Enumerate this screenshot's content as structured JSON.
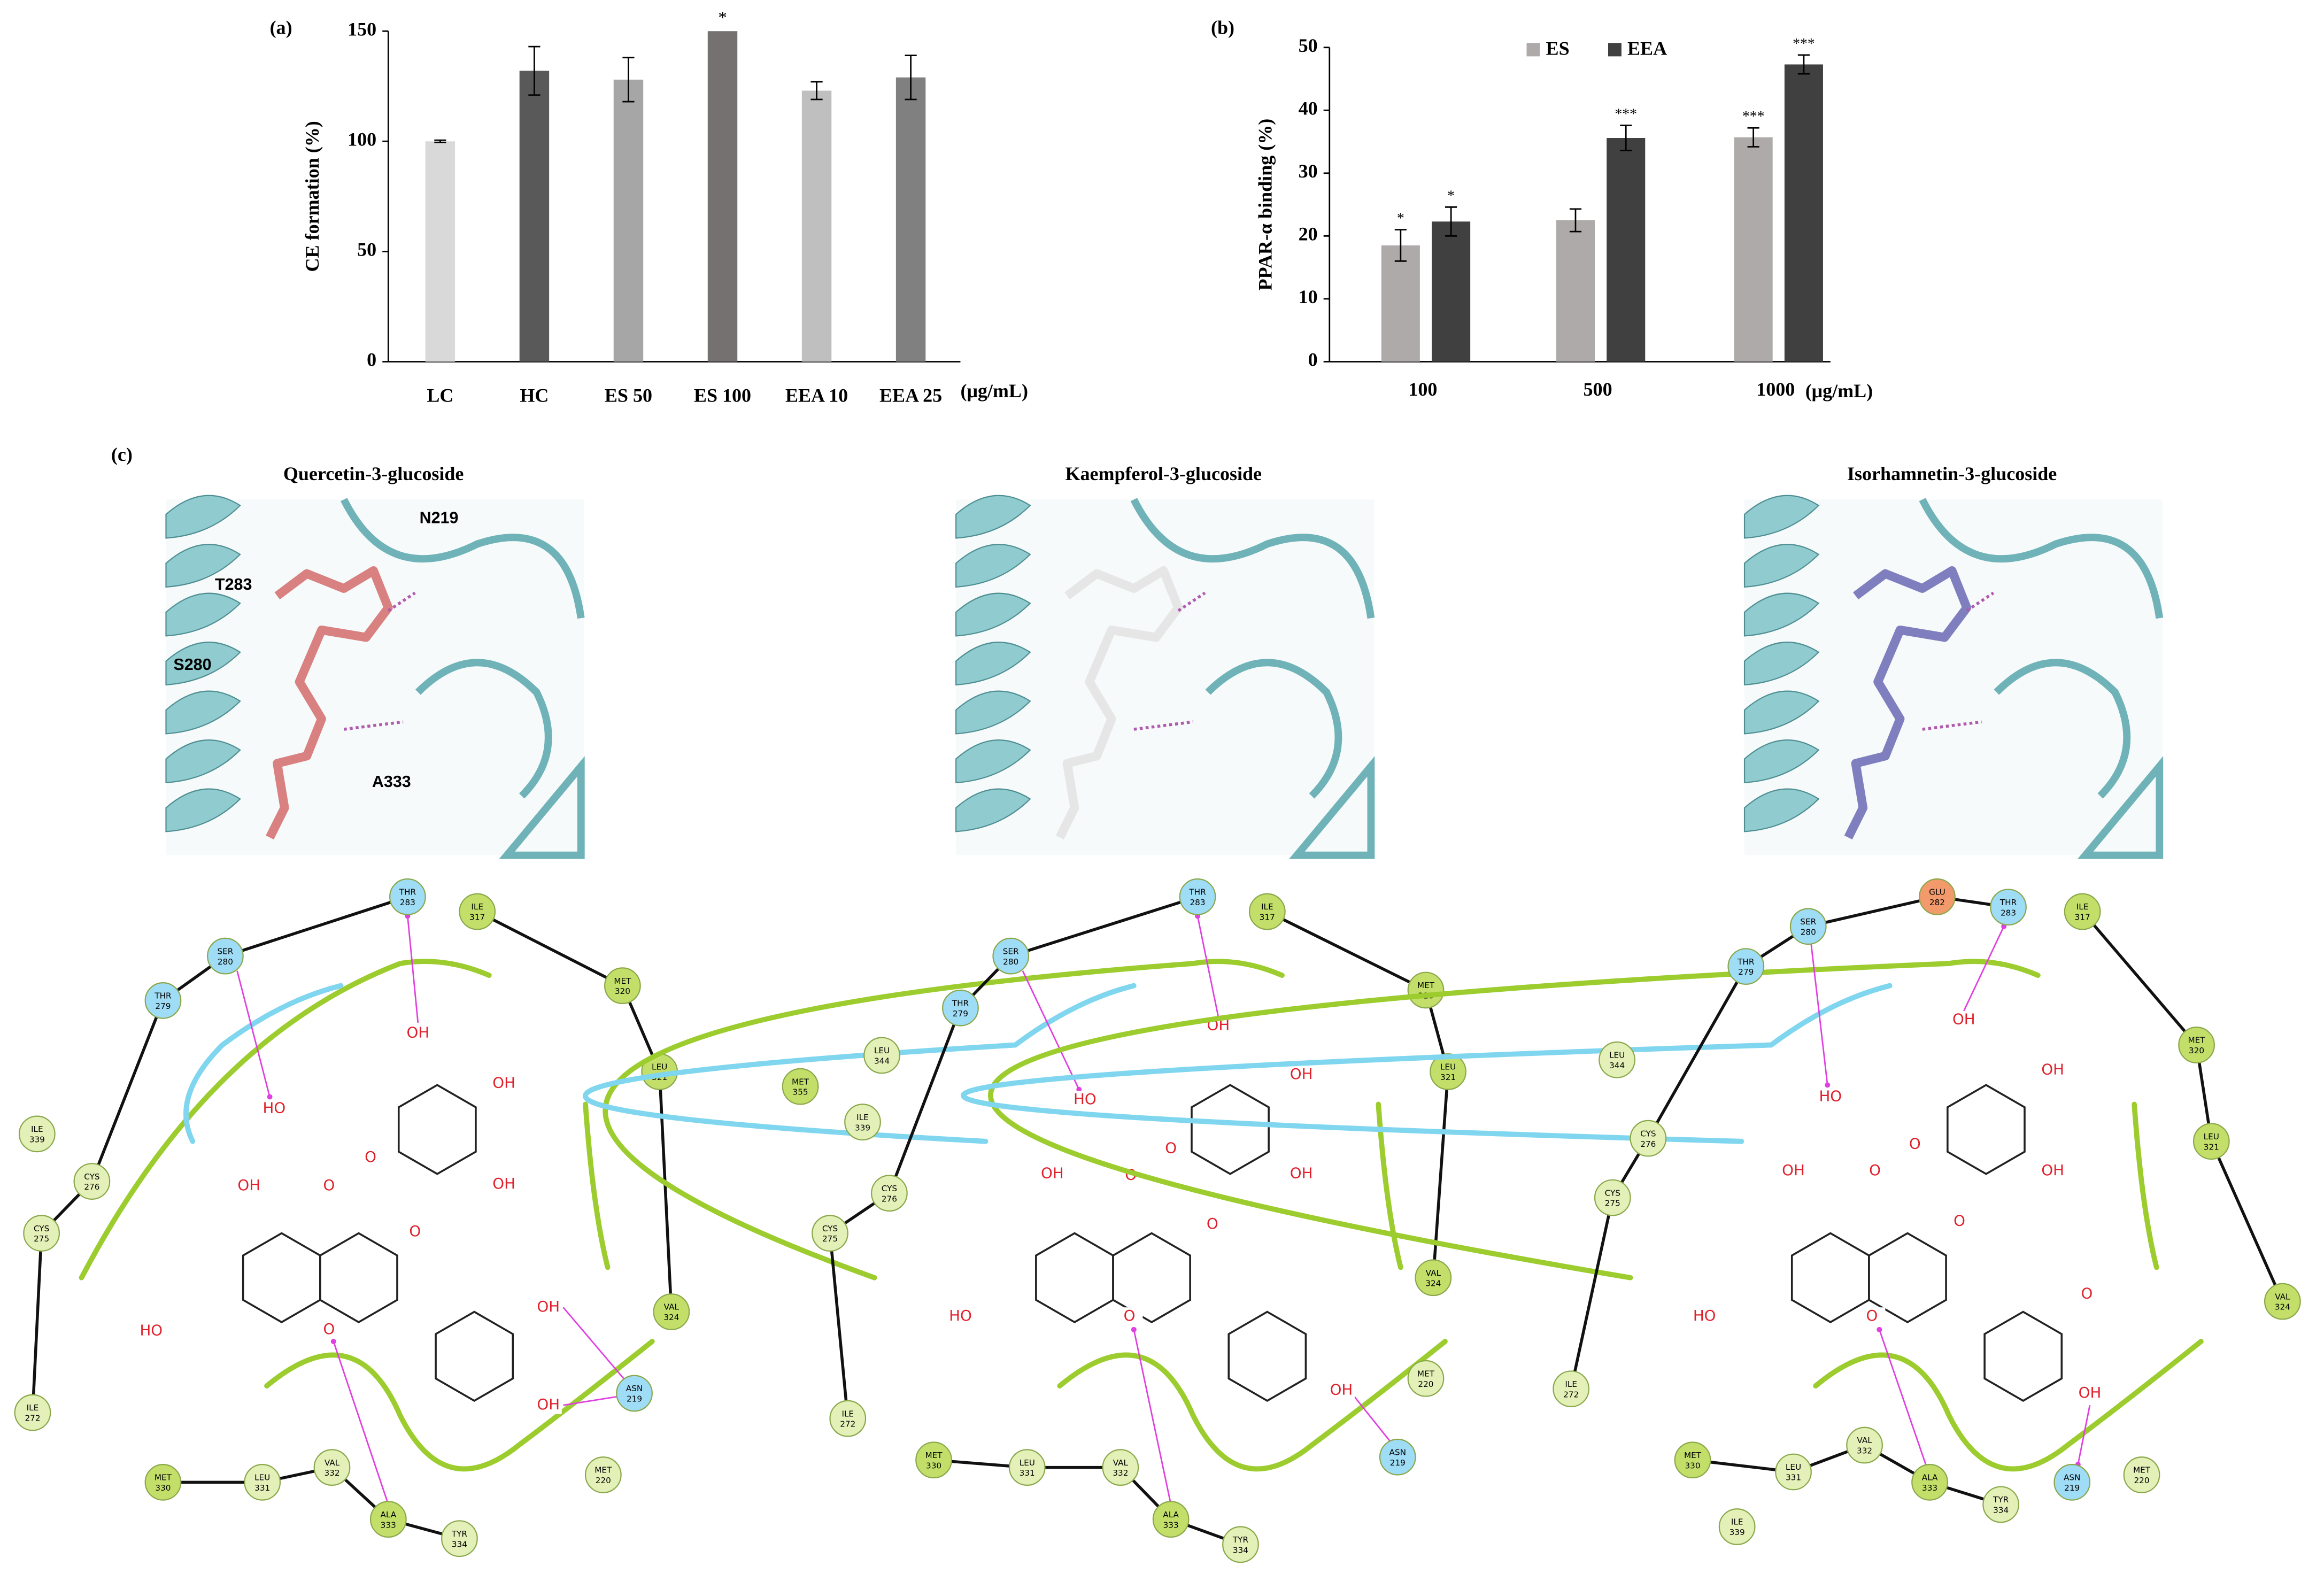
{
  "chart_data": [
    {
      "type": "bar",
      "panel_label": "(a)",
      "ylabel": "CE formation (%)",
      "x_unit": "(μg/mL)",
      "categories": [
        "LC",
        "HC",
        "ES 50",
        "ES 100",
        "EEA 10",
        "EEA 25"
      ],
      "values": [
        100,
        132,
        128,
        150,
        123,
        129
      ],
      "errors": [
        0.5,
        11,
        10,
        null,
        4,
        10
      ],
      "significance": [
        null,
        null,
        null,
        "*",
        null,
        null
      ],
      "colors": [
        "#d9d9d9",
        "#595959",
        "#a6a6a6",
        "#767171",
        "#bfbfbf",
        "#808080"
      ],
      "ylim": [
        0,
        150
      ],
      "yticks": [
        0,
        50,
        100,
        150
      ]
    },
    {
      "type": "grouped_bar",
      "panel_label": "(b)",
      "ylabel": "PPAR-α binding (%)",
      "x_unit": "(μg/mL)",
      "categories": [
        "100",
        "500",
        "1000"
      ],
      "series": [
        {
          "name": "ES",
          "color": "#aeaaaa",
          "values": [
            18.5,
            22.5,
            35.7
          ],
          "errors": [
            2.5,
            1.8,
            1.5
          ],
          "significance": [
            "*",
            null,
            "***"
          ]
        },
        {
          "name": "EEA",
          "color": "#404040",
          "values": [
            22.3,
            35.6,
            47.3
          ],
          "errors": [
            2.3,
            2,
            1.5
          ],
          "significance": [
            "*",
            "***",
            "***"
          ]
        }
      ],
      "ylim": [
        0,
        50
      ],
      "yticks": [
        0,
        10,
        20,
        30,
        40,
        50
      ],
      "legend": "top"
    }
  ],
  "panel_c": {
    "label": "(c)",
    "complexes": [
      {
        "title": "Quercetin-3-glucoside",
        "ligand_color": "#d98080",
        "structure_labels": [
          "N219",
          "T283",
          "S280",
          "A333"
        ],
        "residues": [
          {
            "name": "THR",
            "number": "283",
            "color": "#9fdcf5"
          },
          {
            "name": "ILE",
            "number": "317",
            "color": "#c3df6a"
          },
          {
            "name": "SER",
            "number": "280",
            "color": "#9fdcf5"
          },
          {
            "name": "THR",
            "number": "279",
            "color": "#9fdcf5"
          },
          {
            "name": "MET",
            "number": "320",
            "color": "#c3df6a"
          },
          {
            "name": "LEU",
            "number": "321",
            "color": "#c3df6a"
          },
          {
            "name": "ILE",
            "number": "339",
            "color": "#e3f0b8"
          },
          {
            "name": "CYS",
            "number": "276",
            "color": "#e3f0b8"
          },
          {
            "name": "CYS",
            "number": "275",
            "color": "#e3f0b8"
          },
          {
            "name": "VAL",
            "number": "324",
            "color": "#c3df6a"
          },
          {
            "name": "ASN",
            "number": "219",
            "color": "#9fdcf5"
          },
          {
            "name": "MET",
            "number": "220",
            "color": "#e3f0b8"
          },
          {
            "name": "ILE",
            "number": "272",
            "color": "#e3f0b8"
          },
          {
            "name": "MET",
            "number": "330",
            "color": "#c3df6a"
          },
          {
            "name": "LEU",
            "number": "331",
            "color": "#e3f0b8"
          },
          {
            "name": "VAL",
            "number": "332",
            "color": "#e3f0b8"
          },
          {
            "name": "ALA",
            "number": "333",
            "color": "#c3df6a"
          },
          {
            "name": "TYR",
            "number": "334",
            "color": "#e3f0b8"
          }
        ],
        "atoms": [
          "HO",
          "OH",
          "OH",
          "OH",
          "O",
          "O",
          "OH",
          "O",
          "HO",
          "O",
          "OH",
          "OH"
        ]
      },
      {
        "title": "Kaempferol-3-glucoside",
        "ligand_color": "#e6e6e6",
        "structure_labels": [],
        "residues": [
          {
            "name": "THR",
            "number": "283",
            "color": "#9fdcf5"
          },
          {
            "name": "ILE",
            "number": "317",
            "color": "#c3df6a"
          },
          {
            "name": "SER",
            "number": "280",
            "color": "#9fdcf5"
          },
          {
            "name": "THR",
            "number": "279",
            "color": "#9fdcf5"
          },
          {
            "name": "MET",
            "number": "320",
            "color": "#c3df6a"
          },
          {
            "name": "LEU",
            "number": "321",
            "color": "#c3df6a"
          },
          {
            "name": "LEU",
            "number": "344",
            "color": "#e3f0b8"
          },
          {
            "name": "MET",
            "number": "355",
            "color": "#c3df6a"
          },
          {
            "name": "ILE",
            "number": "339",
            "color": "#e3f0b8"
          },
          {
            "name": "CYS",
            "number": "276",
            "color": "#e3f0b8"
          },
          {
            "name": "CYS",
            "number": "275",
            "color": "#e3f0b8"
          },
          {
            "name": "VAL",
            "number": "324",
            "color": "#c3df6a"
          },
          {
            "name": "MET",
            "number": "220",
            "color": "#e3f0b8"
          },
          {
            "name": "ASN",
            "number": "219",
            "color": "#9fdcf5"
          },
          {
            "name": "ILE",
            "number": "272",
            "color": "#e3f0b8"
          },
          {
            "name": "MET",
            "number": "330",
            "color": "#c3df6a"
          },
          {
            "name": "LEU",
            "number": "331",
            "color": "#e3f0b8"
          },
          {
            "name": "VAL",
            "number": "332",
            "color": "#e3f0b8"
          },
          {
            "name": "ALA",
            "number": "333",
            "color": "#c3df6a"
          },
          {
            "name": "TYR",
            "number": "334",
            "color": "#e3f0b8"
          }
        ],
        "atoms": [
          "HO",
          "OH",
          "OH",
          "OH",
          "O",
          "O",
          "OH",
          "O",
          "HO",
          "O",
          "OH"
        ]
      },
      {
        "title": "Isorhamnetin-3-glucoside",
        "ligand_color": "#7f7fbf",
        "structure_labels": [],
        "residues": [
          {
            "name": "GLU",
            "number": "282",
            "color": "#f29a6b"
          },
          {
            "name": "THR",
            "number": "283",
            "color": "#9fdcf5"
          },
          {
            "name": "ILE",
            "number": "317",
            "color": "#c3df6a"
          },
          {
            "name": "SER",
            "number": "280",
            "color": "#9fdcf5"
          },
          {
            "name": "THR",
            "number": "279",
            "color": "#9fdcf5"
          },
          {
            "name": "LEU",
            "number": "344",
            "color": "#e3f0b8"
          },
          {
            "name": "MET",
            "number": "320",
            "color": "#c3df6a"
          },
          {
            "name": "LEU",
            "number": "321",
            "color": "#c3df6a"
          },
          {
            "name": "CYS",
            "number": "276",
            "color": "#e3f0b8"
          },
          {
            "name": "CYS",
            "number": "275",
            "color": "#e3f0b8"
          },
          {
            "name": "VAL",
            "number": "324",
            "color": "#c3df6a"
          },
          {
            "name": "ILE",
            "number": "272",
            "color": "#e3f0b8"
          },
          {
            "name": "MET",
            "number": "330",
            "color": "#c3df6a"
          },
          {
            "name": "LEU",
            "number": "331",
            "color": "#e3f0b8"
          },
          {
            "name": "VAL",
            "number": "332",
            "color": "#e3f0b8"
          },
          {
            "name": "ALA",
            "number": "333",
            "color": "#c3df6a"
          },
          {
            "name": "TYR",
            "number": "334",
            "color": "#e3f0b8"
          },
          {
            "name": "ASN",
            "number": "219",
            "color": "#9fdcf5"
          },
          {
            "name": "MET",
            "number": "220",
            "color": "#e3f0b8"
          },
          {
            "name": "ILE",
            "number": "339",
            "color": "#e3f0b8"
          }
        ],
        "atoms": [
          "HO",
          "OH",
          "OH",
          "OH",
          "O",
          "O",
          "OH",
          "O",
          "HO",
          "O",
          "O",
          "OH"
        ]
      }
    ]
  }
}
